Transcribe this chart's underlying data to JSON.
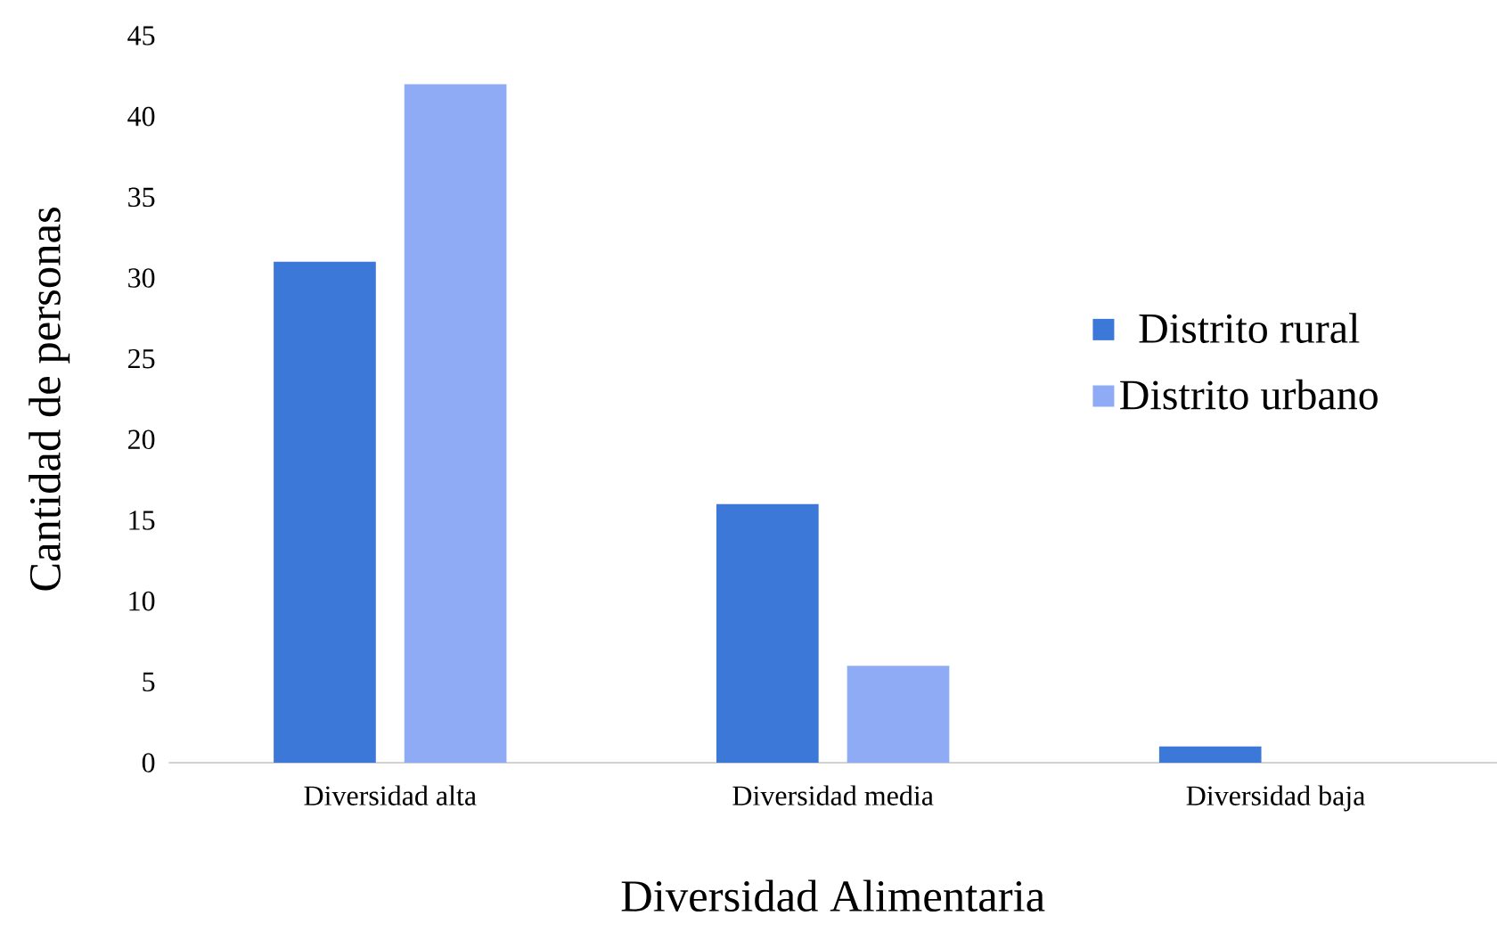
{
  "chart_data": {
    "type": "bar",
    "xlabel": "Diversidad Alimentaria",
    "ylabel": "Cantidad de personas",
    "categories": [
      "Diversidad alta",
      "Diversidad media",
      "Diversidad baja"
    ],
    "series": [
      {
        "name": "Distrito rural",
        "color": "#3c78d8",
        "values": [
          31,
          16,
          1
        ]
      },
      {
        "name": "Distrito urbano",
        "color": "#8fabf5",
        "values": [
          42,
          6,
          0
        ]
      }
    ],
    "ylim": [
      0,
      45
    ],
    "yticks": [
      0,
      5,
      10,
      15,
      20,
      25,
      30,
      35,
      40,
      45
    ],
    "legend": "right"
  }
}
